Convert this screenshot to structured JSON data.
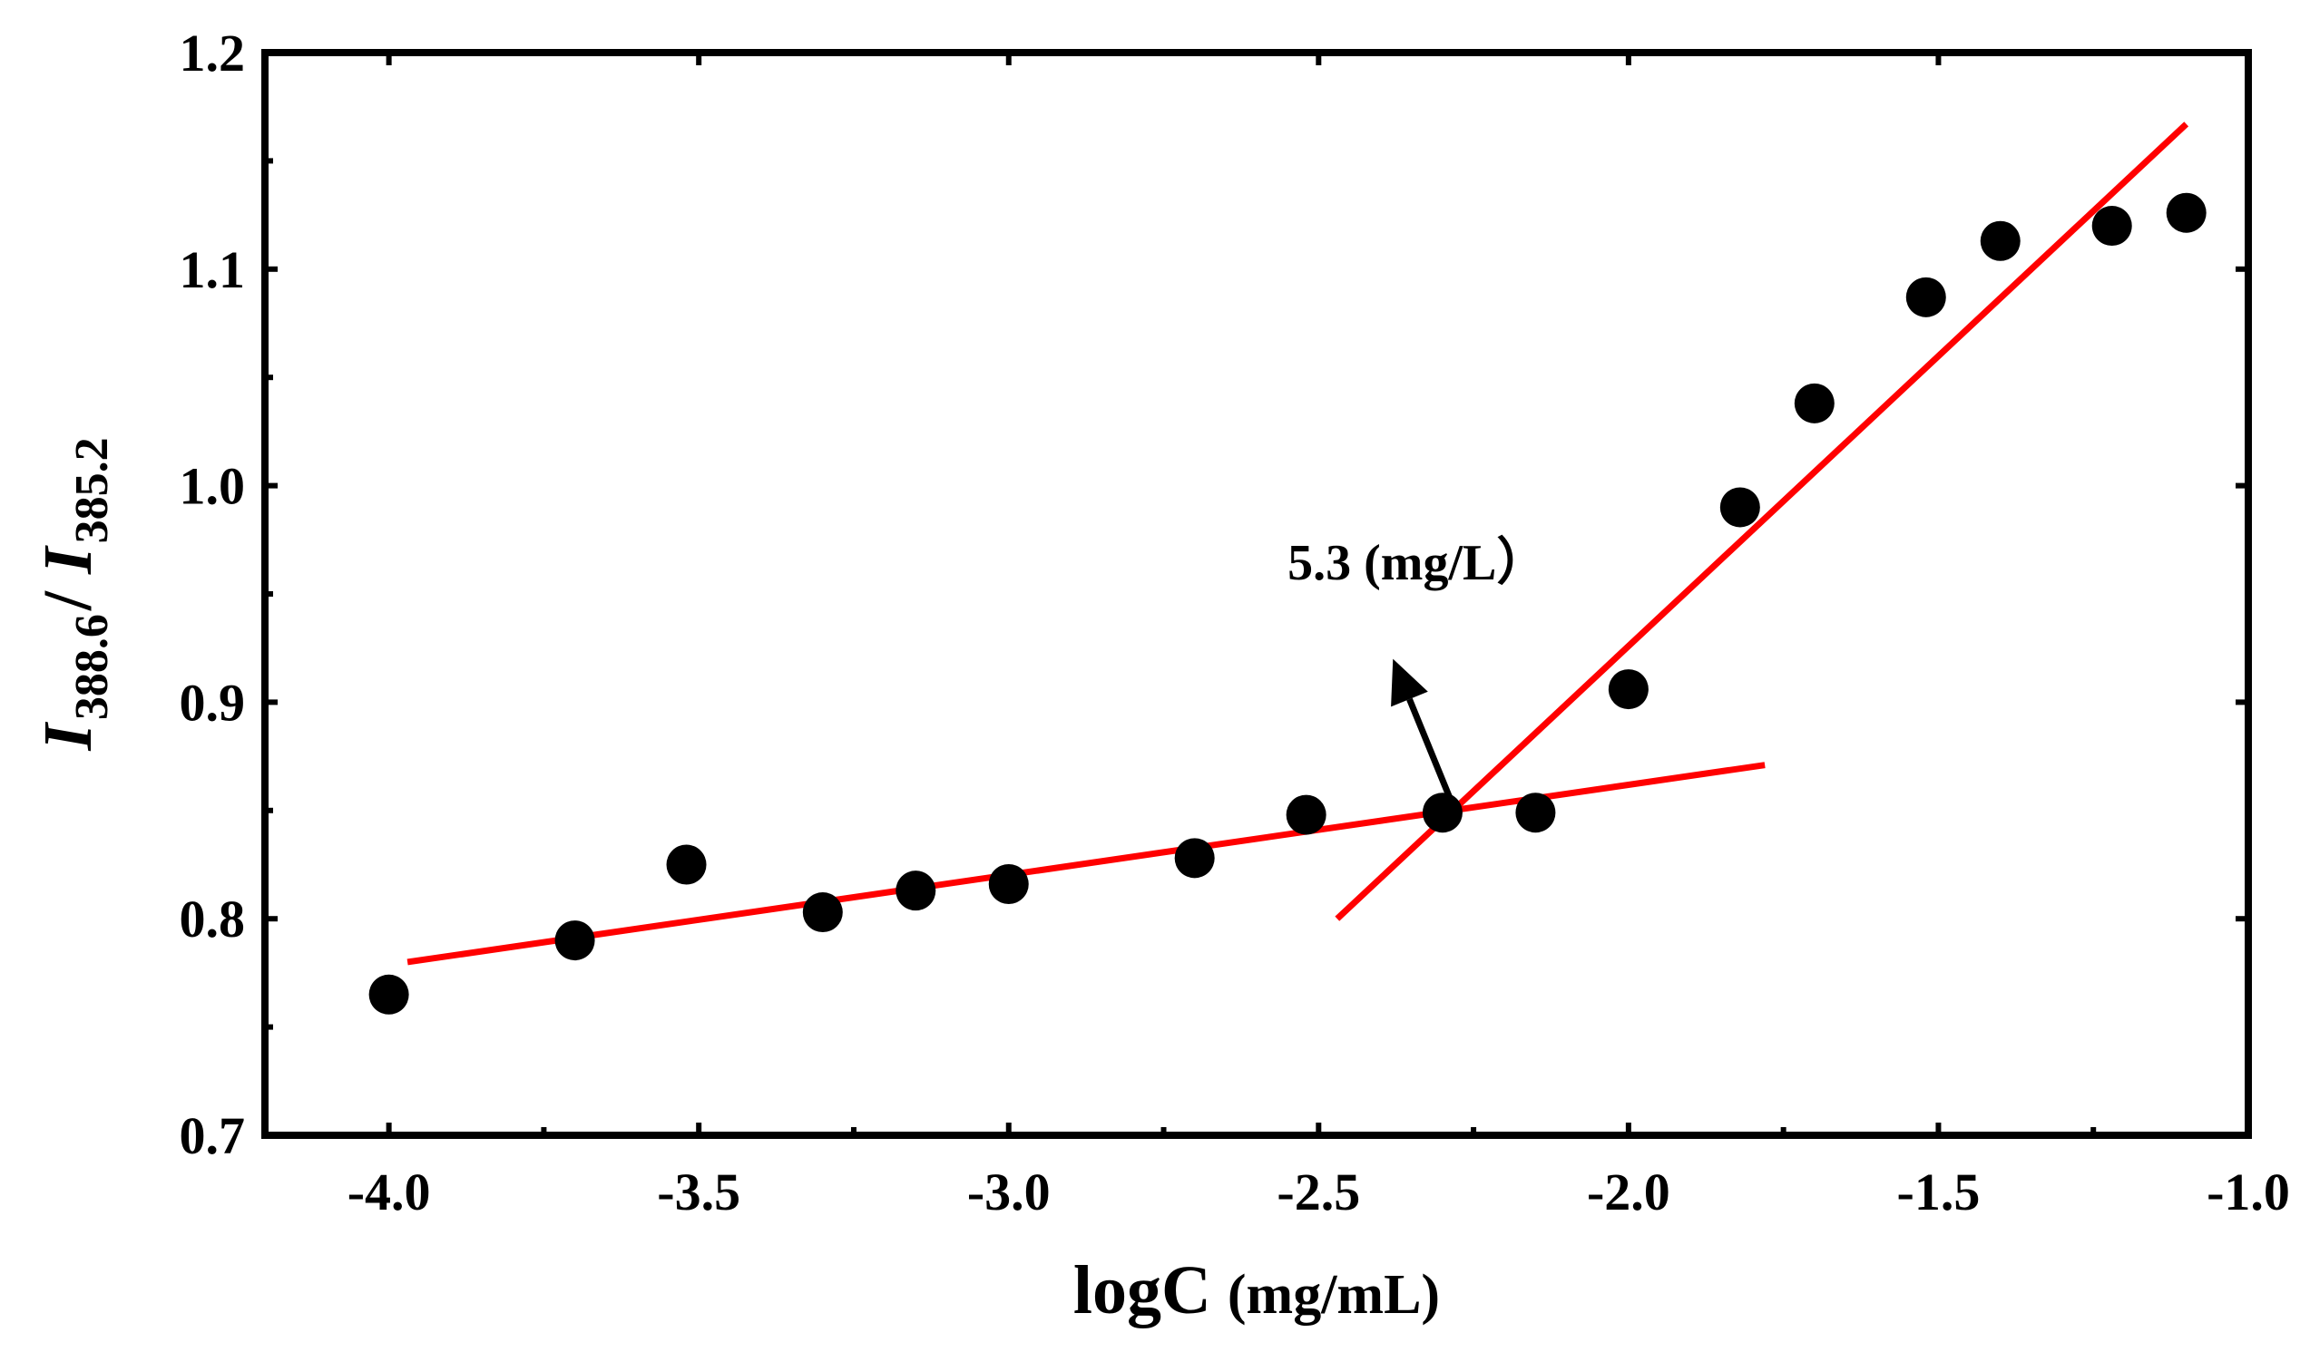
{
  "chart_data": {
    "type": "scatter",
    "title": "",
    "xlabel": "logC (mg/mL)",
    "xlabel_main": "logC",
    "xlabel_unit": "(mg/mL)",
    "ylabel": "I388.6 / I385.2",
    "ylabel_parts": {
      "i1": "I",
      "sub1": "388.6",
      "slash": " / ",
      "i2": "I",
      "sub2": "385.2"
    },
    "xlim": [
      -4.2,
      -1.0
    ],
    "ylim": [
      0.7,
      1.2
    ],
    "xticks": [
      -4.0,
      -3.5,
      -3.0,
      -2.5,
      -2.0,
      -1.5,
      -1.0
    ],
    "xtick_labels": [
      "-4.0",
      "-3.5",
      "-3.0",
      "-2.5",
      "-2.0",
      "-1.5",
      "-1.0"
    ],
    "yticks": [
      0.7,
      0.8,
      0.9,
      1.0,
      1.1,
      1.2
    ],
    "ytick_labels": [
      "0.7",
      "0.8",
      "0.9",
      "1.0",
      "1.1",
      "1.2"
    ],
    "grid": false,
    "series": [
      {
        "name": "data",
        "color": "#000000",
        "points": [
          {
            "x": -4.0,
            "y": 0.765
          },
          {
            "x": -3.7,
            "y": 0.79
          },
          {
            "x": -3.52,
            "y": 0.825
          },
          {
            "x": -3.3,
            "y": 0.803
          },
          {
            "x": -3.15,
            "y": 0.813
          },
          {
            "x": -3.0,
            "y": 0.816
          },
          {
            "x": -2.7,
            "y": 0.828
          },
          {
            "x": -2.52,
            "y": 0.848
          },
          {
            "x": -2.3,
            "y": 0.849
          },
          {
            "x": -2.15,
            "y": 0.849
          },
          {
            "x": -2.0,
            "y": 0.906
          },
          {
            "x": -1.82,
            "y": 0.99
          },
          {
            "x": -1.7,
            "y": 1.038
          },
          {
            "x": -1.52,
            "y": 1.087
          },
          {
            "x": -1.4,
            "y": 1.113
          },
          {
            "x": -1.22,
            "y": 1.12
          },
          {
            "x": -1.1,
            "y": 1.126
          }
        ]
      }
    ],
    "fit_lines": [
      {
        "name": "fit-low",
        "color": "#ff0000",
        "x": [
          -3.97,
          -1.78
        ],
        "y": [
          0.78,
          0.871
        ]
      },
      {
        "name": "fit-high",
        "color": "#ff0000",
        "x": [
          -2.47,
          -1.1
        ],
        "y": [
          0.8,
          1.167
        ]
      }
    ],
    "annotations": [
      {
        "text": "5.3 (mg/L）",
        "x": -2.55,
        "y": 0.965,
        "arrow_from": [
          -2.28,
          0.85
        ],
        "arrow_to": [
          -2.38,
          0.92
        ]
      }
    ]
  }
}
